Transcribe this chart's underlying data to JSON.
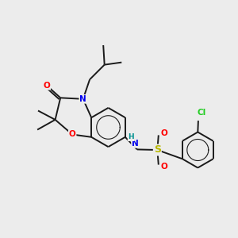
{
  "bg_color": "#ececec",
  "bond_color": "#1a1a1a",
  "bond_width": 1.4,
  "figsize": [
    3.0,
    3.0
  ],
  "dpi": 100,
  "atoms": {
    "N_blue": "#0000ee",
    "O_red": "#ff0000",
    "S_yellow": "#b8b800",
    "Cl_green": "#22cc22",
    "H_teal": "#009090"
  },
  "xlim": [
    0,
    10
  ],
  "ylim": [
    0,
    10
  ]
}
